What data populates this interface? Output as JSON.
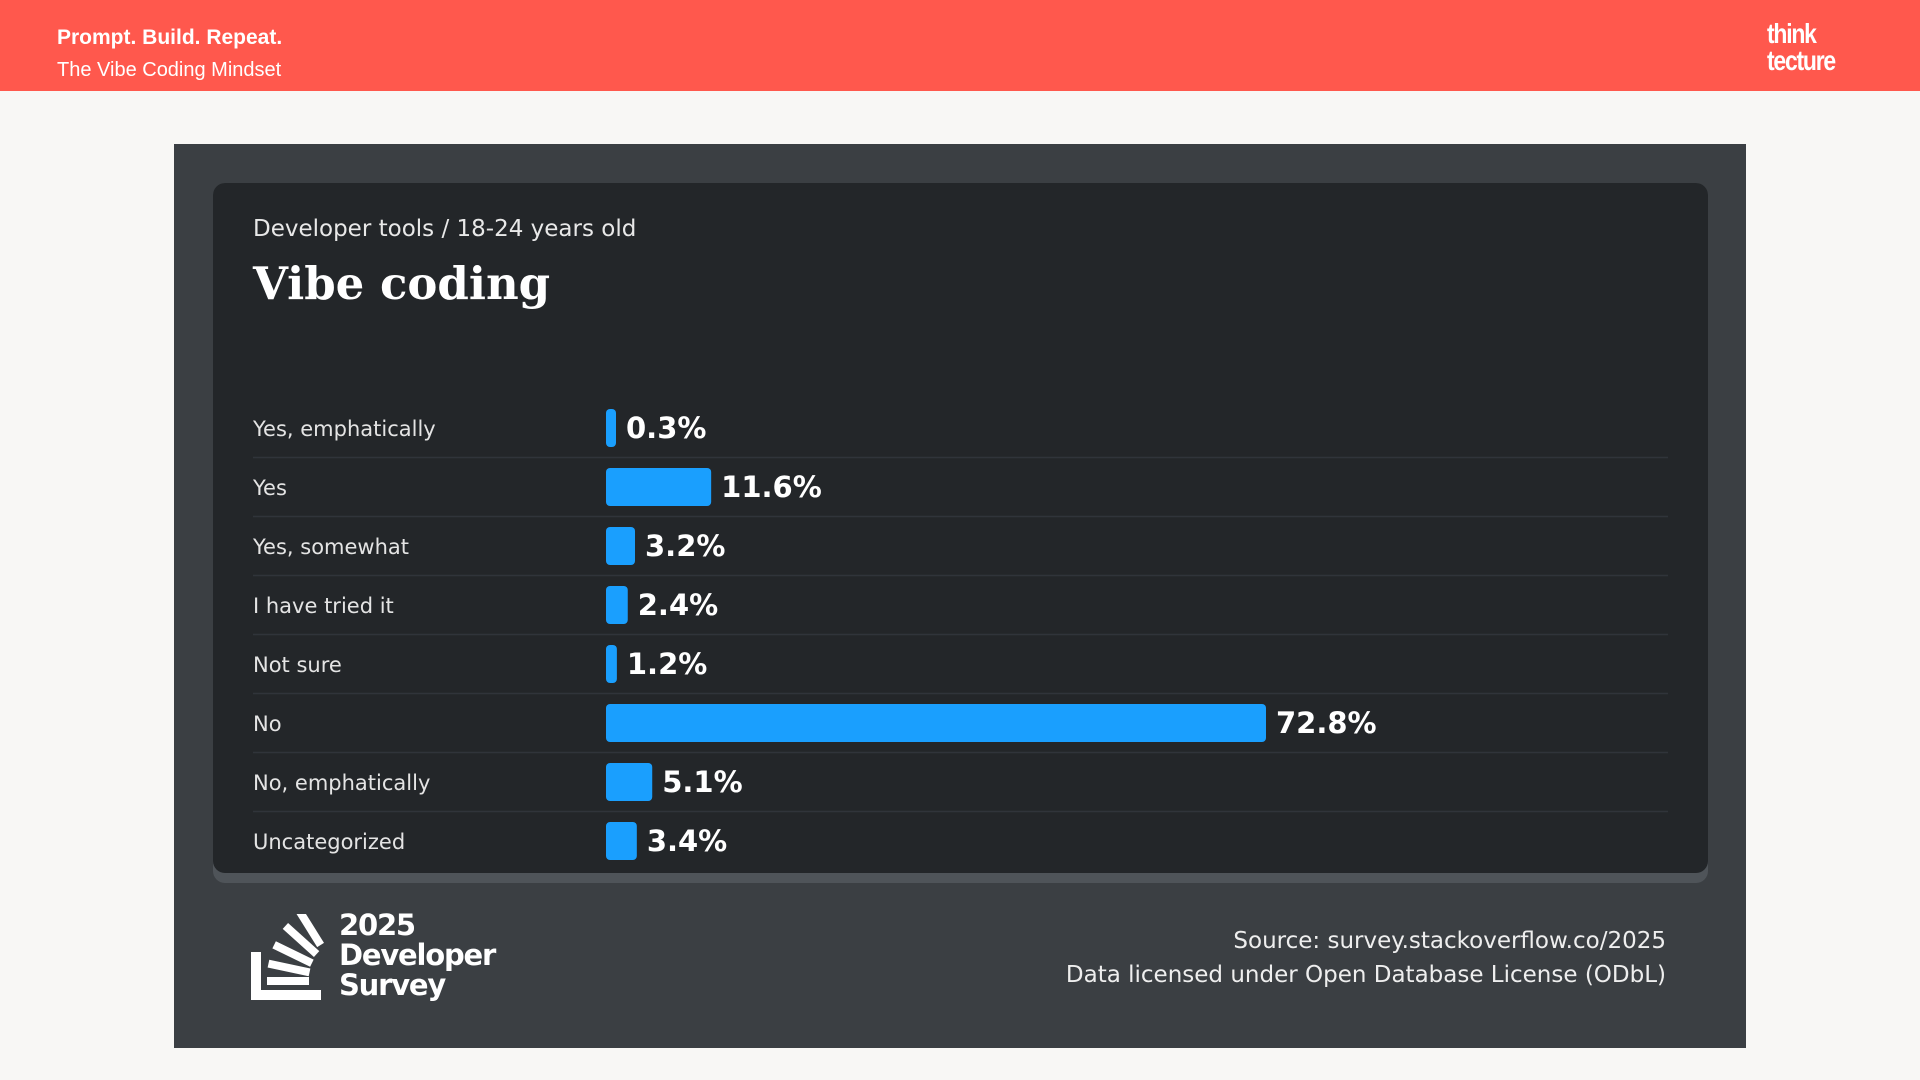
{
  "header": {
    "title": "Prompt. Build. Repeat.",
    "subtitle": "The Vibe Coding Mindset",
    "logo_line1": "think",
    "logo_line2": "tecture"
  },
  "colors": {
    "header_bg": "#ff584d",
    "panel_bg": "#3b3f43",
    "card_bg": "#232629",
    "bar": "#1a9ffe"
  },
  "chart_data": {
    "type": "bar",
    "orientation": "horizontal",
    "kicker": "Developer tools / 18-24 years old",
    "title": "Vibe coding",
    "categories": [
      "Yes, emphatically",
      "Yes",
      "Yes, somewhat",
      "I have tried it",
      "Not sure",
      "No",
      "No, emphatically",
      "Uncategorized"
    ],
    "values": [
      0.3,
      11.6,
      3.2,
      2.4,
      1.2,
      72.8,
      5.1,
      3.4
    ],
    "value_labels": [
      "0.3%",
      "11.6%",
      "3.2%",
      "2.4%",
      "1.2%",
      "72.8%",
      "5.1%",
      "3.4%"
    ],
    "unit": "%",
    "grid": false,
    "legend": "none"
  },
  "footer": {
    "survey_year": "2025",
    "survey_line2": "Developer",
    "survey_line3": "Survey",
    "source": "Source: survey.stackoverflow.co/2025",
    "license": "Data licensed under Open Database License (ODbL)"
  }
}
